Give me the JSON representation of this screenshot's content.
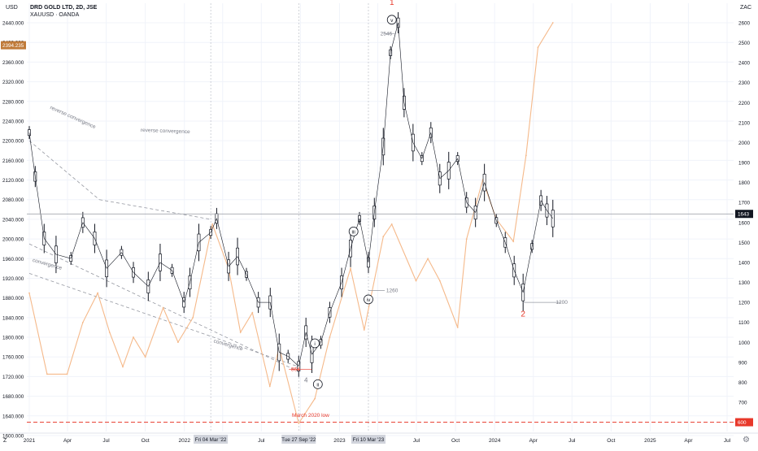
{
  "header": {
    "title": "DRD GOLD LTD, 2D, JSE",
    "subtitle": "XAUUSD · OANDA",
    "left_unit": "USD",
    "right_unit": "ZAC",
    "bottom_left_icon": "Z",
    "settings_icon": "gear-icon"
  },
  "colors": {
    "candles": "#131722",
    "gold_line": "#f5b98a",
    "trend_lines": "#9598a1",
    "wave_labels": "#e8382a",
    "march_low_line": "#e8382a",
    "current_price_label": "#131722",
    "gold_price_label": "#c07b3a"
  },
  "chart_data": {
    "type": "line",
    "title": "DRD GOLD LTD, 2D, JSE",
    "left_axis": {
      "unit": "USD",
      "ylim": [
        1590,
        2450
      ],
      "ticks": [
        "2440.000",
        "2400.000",
        "2360.000",
        "2320.000",
        "2280.000",
        "2240.000",
        "2200.000",
        "2160.000",
        "2120.000",
        "2080.000",
        "2040.000",
        "2000.000",
        "1960.000",
        "1920.000",
        "1880.000",
        "1840.000",
        "1800.000",
        "1760.000",
        "1720.000",
        "1680.000",
        "1640.000",
        "1600.000"
      ],
      "price_label": "2394.235"
    },
    "right_axis": {
      "unit": "ZAC",
      "ylim": [
        530,
        2640
      ],
      "ticks": [
        "2600",
        "2500",
        "2400",
        "2300",
        "2200",
        "2100",
        "2000",
        "1900",
        "1800",
        "1700",
        "1600",
        "1500",
        "1400",
        "1300",
        "1200",
        "1100",
        "1000",
        "900",
        "800",
        "700"
      ],
      "price_label": "1643",
      "march_low_label": "600"
    },
    "x_axis": {
      "ticks": [
        "2021",
        "Apr",
        "Jul",
        "Oct",
        "2022",
        "Apr",
        "Jul",
        "Oct",
        "2023",
        "Apr",
        "Jul",
        "Oct",
        "2024",
        "Apr",
        "Jul",
        "Oct",
        "2025",
        "Apr",
        "Jul"
      ],
      "crosshair_labels": [
        "Fri 04 Mar '22",
        "Tue 27 Sep '22",
        "Fri 10 Mar '23"
      ]
    },
    "series": [
      {
        "name": "DRD GOLD LTD",
        "kind": "bars",
        "axis": "right",
        "x": [
          "2021-01-01",
          "2021-01-15",
          "2021-02-05",
          "2021-03-05",
          "2021-04-09",
          "2021-05-07",
          "2021-06-04",
          "2021-07-02",
          "2021-08-06",
          "2021-09-03",
          "2021-10-08",
          "2021-11-05",
          "2021-12-03",
          "2021-12-31",
          "2022-01-14",
          "2022-02-04",
          "2022-03-04",
          "2022-03-18",
          "2022-04-15",
          "2022-05-06",
          "2022-05-27",
          "2022-06-24",
          "2022-07-22",
          "2022-08-12",
          "2022-09-02",
          "2022-09-27",
          "2022-10-14",
          "2022-10-28",
          "2022-11-18",
          "2022-12-09",
          "2023-01-06",
          "2023-01-27",
          "2023-02-17",
          "2023-03-10",
          "2023-03-24",
          "2023-04-14",
          "2023-05-01",
          "2023-05-19",
          "2023-06-02",
          "2023-06-23",
          "2023-07-14",
          "2023-08-04",
          "2023-08-25",
          "2023-09-15",
          "2023-10-06",
          "2023-10-27",
          "2023-11-17",
          "2023-12-08",
          "2024-01-05",
          "2024-01-26",
          "2024-02-16",
          "2024-03-08",
          "2024-03-29",
          "2024-04-19",
          "2024-05-03",
          "2024-05-17"
        ],
        "y": [
          2050,
          1830,
          1520,
          1440,
          1420,
          1600,
          1520,
          1370,
          1450,
          1350,
          1280,
          1400,
          1360,
          1200,
          1300,
          1500,
          1550,
          1620,
          1380,
          1430,
          1340,
          1200,
          1200,
          950,
          930,
          880,
          1050,
          940,
          1000,
          1150,
          1300,
          1470,
          1620,
          1400,
          1650,
          1980,
          2450,
          2600,
          2200,
          2000,
          1920,
          2050,
          1820,
          1860,
          1920,
          1700,
          1650,
          1800,
          1610,
          1500,
          1360,
          1250,
          1480,
          1710,
          1660,
          1620
        ]
      },
      {
        "name": "XAUUSD",
        "kind": "line",
        "axis": "left",
        "x": [
          "2021-01-01",
          "2021-02-12",
          "2021-03-31",
          "2021-05-07",
          "2021-06-11",
          "2021-07-09",
          "2021-08-09",
          "2021-09-03",
          "2021-10-01",
          "2021-11-12",
          "2021-12-17",
          "2022-01-21",
          "2022-03-08",
          "2022-04-15",
          "2022-05-13",
          "2022-06-10",
          "2022-07-21",
          "2022-08-12",
          "2022-09-27",
          "2022-11-04",
          "2022-12-09",
          "2023-01-27",
          "2023-02-28",
          "2023-04-14",
          "2023-05-04",
          "2023-06-30",
          "2023-07-28",
          "2023-08-25",
          "2023-10-06",
          "2023-10-27",
          "2023-12-04",
          "2024-01-05",
          "2024-02-14",
          "2024-03-15",
          "2024-04-12",
          "2024-05-17"
        ],
        "y": [
          1890,
          1725,
          1725,
          1830,
          1890,
          1810,
          1740,
          1800,
          1760,
          1860,
          1790,
          1840,
          2030,
          1940,
          1810,
          1850,
          1700,
          1780,
          1625,
          1675,
          1800,
          1940,
          1815,
          2005,
          2030,
          1915,
          1960,
          1915,
          1820,
          2000,
          2120,
          2040,
          1995,
          2170,
          2390,
          2440
        ]
      }
    ],
    "annotations": [
      {
        "text": "1",
        "kind": "wave-major"
      },
      {
        "text": "2",
        "kind": "wave-major"
      },
      {
        "text": "v",
        "kind": "wave-circled"
      },
      {
        "text": "iii",
        "kind": "wave-circled"
      },
      {
        "text": "iv",
        "kind": "wave-circled"
      },
      {
        "text": "i",
        "kind": "wave-circled"
      },
      {
        "text": "ii",
        "kind": "wave-circled"
      },
      {
        "text": "4",
        "kind": "wave-minor"
      },
      {
        "text": "2546",
        "kind": "level"
      },
      {
        "text": "1260",
        "kind": "level"
      },
      {
        "text": "864",
        "kind": "level"
      },
      {
        "text": "1200",
        "kind": "level"
      },
      {
        "text": "reverse convergence",
        "kind": "trendline-label"
      },
      {
        "text": "reverse convergence",
        "kind": "trendline-label"
      },
      {
        "text": "convergence",
        "kind": "trendline-label"
      },
      {
        "text": "convergence",
        "kind": "trendline-label"
      },
      {
        "text": "March 2020 low",
        "kind": "level"
      }
    ],
    "grid": true,
    "legend": "top-left"
  }
}
